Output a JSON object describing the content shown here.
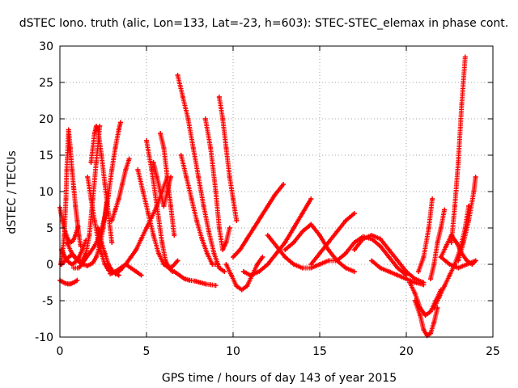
{
  "chart_data": {
    "type": "scatter",
    "title": "dSTEC Iono. truth (alic, Lon=133, Lat=-23, h=603): STEC-STEC_elemax in phase cont.",
    "xlabel": "GPS time / hours of day 143 of year 2015",
    "ylabel": "dSTEC  / TECUs",
    "xlim": [
      0,
      25
    ],
    "ylim": [
      -10,
      30
    ],
    "xticks": [
      0,
      5,
      10,
      15,
      20,
      25
    ],
    "yticks": [
      -10,
      -5,
      0,
      5,
      10,
      15,
      20,
      25,
      30
    ],
    "grid": true,
    "legend": "none",
    "marker": "plus",
    "color": "#ff0000",
    "series": [
      {
        "x": [
          0.0,
          0.15,
          0.3,
          0.45,
          0.6,
          0.75,
          0.9,
          1.05
        ],
        "y": [
          7.8,
          6.0,
          4.5,
          3.5,
          3.0,
          3.2,
          4.0,
          5.2
        ]
      },
      {
        "x": [
          0.0,
          0.15,
          0.3,
          0.45,
          0.6,
          0.8,
          1.0
        ],
        "y": [
          -2.2,
          -2.4,
          -2.6,
          -2.7,
          -2.7,
          -2.5,
          -2.2
        ]
      },
      {
        "x": [
          0.05,
          0.15,
          0.25,
          0.35,
          0.4,
          0.5,
          0.6,
          0.7,
          0.8,
          0.9,
          1.0,
          1.1,
          1.2
        ],
        "y": [
          0.0,
          1.5,
          4.0,
          9.0,
          13.0,
          18.5,
          16.0,
          13.0,
          10.5,
          8.0,
          6.0,
          4.0,
          2.5
        ]
      },
      {
        "x": [
          0.1,
          0.3,
          0.5,
          0.7,
          0.9,
          1.1,
          1.3,
          1.5,
          1.7,
          1.9,
          2.1,
          2.3
        ],
        "y": [
          0.0,
          0.5,
          1.0,
          1.3,
          1.0,
          0.5,
          0.5,
          1.5,
          4.0,
          9.0,
          14.0,
          19.0
        ]
      },
      {
        "x": [
          0.1,
          0.3,
          0.5,
          0.7,
          0.9,
          1.1,
          1.3,
          1.5
        ],
        "y": [
          2.0,
          1.0,
          0.3,
          0.0,
          0.3,
          1.0,
          2.0,
          3.3
        ]
      },
      {
        "x": [
          0.4,
          0.7,
          1.0,
          1.3,
          1.6,
          1.9,
          2.1,
          2.3,
          2.5,
          2.7
        ],
        "y": [
          3.0,
          1.5,
          0.5,
          0.0,
          -0.2,
          0.2,
          1.0,
          2.5,
          5.0,
          8.5
        ]
      },
      {
        "x": [
          0.8,
          1.1,
          1.4,
          1.7,
          2.0,
          2.3,
          2.6,
          2.8,
          3.0,
          3.2,
          3.4,
          3.5
        ],
        "y": [
          -0.5,
          -0.5,
          0.5,
          1.5,
          2.5,
          4.0,
          6.5,
          9.5,
          13.0,
          16.0,
          18.5,
          19.5
        ]
      },
      {
        "x": [
          1.6,
          1.8,
          2.0,
          2.2,
          2.4,
          2.6,
          2.8,
          3.0,
          3.2
        ],
        "y": [
          12.0,
          9.0,
          6.0,
          3.5,
          1.5,
          0.0,
          -0.8,
          -1.2,
          -1.0
        ]
      },
      {
        "x": [
          1.8,
          2.0,
          2.1,
          2.2,
          2.4,
          2.6,
          2.8,
          3.0
        ],
        "y": [
          14.0,
          18.0,
          19.0,
          18.5,
          15.0,
          11.0,
          7.0,
          3.0
        ]
      },
      {
        "x": [
          2.2,
          2.4,
          2.6,
          2.8,
          3.0,
          3.2,
          3.4
        ],
        "y": [
          5.0,
          3.0,
          1.5,
          0.0,
          -0.8,
          -1.2,
          -1.5
        ]
      },
      {
        "x": [
          3.0,
          3.2,
          3.4,
          3.6,
          3.8,
          4.0
        ],
        "y": [
          6.0,
          7.5,
          9.0,
          11.0,
          13.0,
          14.5
        ]
      },
      {
        "x": [
          2.9,
          3.2,
          3.5,
          3.8,
          4.1,
          4.4,
          4.7
        ],
        "y": [
          -1.3,
          -1.0,
          -0.5,
          0.0,
          -0.5,
          -1.0,
          -1.5
        ]
      },
      {
        "x": [
          3.2,
          3.5,
          3.8,
          4.1,
          4.4,
          4.7,
          5.0,
          5.3,
          5.6,
          5.9,
          6.2
        ],
        "y": [
          -1.3,
          -0.8,
          0.0,
          1.0,
          2.0,
          3.5,
          5.0,
          6.5,
          8.0,
          10.0,
          12.0
        ]
      },
      {
        "x": [
          4.5,
          4.8,
          5.1,
          5.4,
          5.7,
          6.0,
          6.3,
          6.5,
          6.8
        ],
        "y": [
          13.0,
          10.0,
          7.0,
          4.0,
          1.5,
          0.0,
          -0.5,
          -0.3,
          0.5
        ]
      },
      {
        "x": [
          5.0,
          5.3,
          5.6,
          5.9,
          6.1,
          6.3,
          6.5
        ],
        "y": [
          17.0,
          13.0,
          8.0,
          3.0,
          0.5,
          -0.5,
          -1.0
        ]
      },
      {
        "x": [
          5.4,
          5.6,
          5.8,
          6.0,
          6.2,
          6.4
        ],
        "y": [
          14.0,
          12.0,
          10.0,
          8.0,
          10.0,
          12.0
        ]
      },
      {
        "x": [
          5.8,
          6.0,
          6.2,
          6.4,
          6.6
        ],
        "y": [
          18.0,
          16.0,
          12.0,
          8.0,
          4.0
        ]
      },
      {
        "x": [
          6.8,
          7.1,
          7.4,
          7.7,
          8.0,
          8.3,
          8.6,
          8.9,
          9.2,
          9.5
        ],
        "y": [
          26.0,
          23.0,
          20.0,
          16.0,
          12.0,
          8.0,
          4.5,
          1.5,
          -0.5,
          -1.0
        ]
      },
      {
        "x": [
          6.6,
          6.9,
          7.2,
          7.5,
          7.8,
          8.1,
          8.4,
          8.7,
          9.0
        ],
        "y": [
          -1.0,
          -1.5,
          -2.0,
          -2.2,
          -2.3,
          -2.5,
          -2.7,
          -2.8,
          -2.9
        ]
      },
      {
        "x": [
          7.0,
          7.3,
          7.6,
          7.9,
          8.2,
          8.5,
          8.8,
          9.1
        ],
        "y": [
          15.0,
          12.0,
          9.0,
          6.0,
          3.5,
          1.5,
          0.0,
          0.0
        ]
      },
      {
        "x": [
          8.4,
          8.7,
          9.0,
          9.2,
          9.4,
          9.6,
          9.8
        ],
        "y": [
          20.0,
          16.0,
          10.0,
          5.0,
          2.0,
          3.0,
          5.0
        ]
      },
      {
        "x": [
          9.2,
          9.4,
          9.6,
          9.8,
          10.0,
          10.2
        ],
        "y": [
          23.0,
          20.0,
          16.0,
          12.0,
          9.0,
          6.0
        ]
      },
      {
        "x": [
          9.6,
          9.9,
          10.2,
          10.5,
          10.8,
          11.1,
          11.4,
          11.7
        ],
        "y": [
          0.0,
          -1.5,
          -3.0,
          -3.5,
          -3.0,
          -1.5,
          0.0,
          1.0
        ]
      },
      {
        "x": [
          10.0,
          10.4,
          10.8,
          11.2,
          11.6,
          12.0,
          12.4,
          12.9
        ],
        "y": [
          1.0,
          2.0,
          3.5,
          5.0,
          6.5,
          8.0,
          9.5,
          11.0
        ]
      },
      {
        "x": [
          10.6,
          11.0,
          11.5,
          12.0,
          12.5,
          13.0,
          13.5,
          14.0,
          14.5
        ],
        "y": [
          -1.0,
          -1.5,
          -1.0,
          0.0,
          1.5,
          3.0,
          5.0,
          7.0,
          9.0
        ]
      },
      {
        "x": [
          12.0,
          12.5,
          13.0,
          13.5,
          14.0,
          14.5,
          15.0,
          15.5,
          16.0
        ],
        "y": [
          4.0,
          2.5,
          1.0,
          0.0,
          -0.5,
          -0.5,
          0.0,
          0.5,
          0.5
        ]
      },
      {
        "x": [
          13.0,
          13.5,
          14.0,
          14.5,
          15.0,
          15.5,
          16.0,
          16.5,
          17.0
        ],
        "y": [
          2.0,
          3.0,
          4.5,
          5.5,
          4.0,
          2.0,
          0.5,
          -0.5,
          -1.0
        ]
      },
      {
        "x": [
          14.5,
          15.0,
          15.5,
          16.0,
          16.5,
          17.0
        ],
        "y": [
          0.0,
          1.5,
          3.0,
          4.5,
          6.0,
          7.0
        ]
      },
      {
        "x": [
          16.0,
          16.5,
          17.0,
          17.5,
          18.0,
          18.5,
          19.0,
          19.5,
          20.0
        ],
        "y": [
          0.5,
          1.5,
          3.0,
          3.8,
          3.5,
          2.5,
          1.0,
          -0.5,
          -1.5
        ]
      },
      {
        "x": [
          17.0,
          17.5,
          18.0,
          18.5,
          19.0,
          19.5,
          20.0,
          20.5,
          21.0
        ],
        "y": [
          2.0,
          3.5,
          4.0,
          3.5,
          2.0,
          0.5,
          -1.0,
          -2.0,
          -2.5
        ]
      },
      {
        "x": [
          18.0,
          18.5,
          19.0,
          19.5,
          20.0,
          20.5,
          21.0
        ],
        "y": [
          0.5,
          -0.5,
          -1.0,
          -1.5,
          -2.0,
          -2.5,
          -2.8
        ]
      },
      {
        "x": [
          20.2,
          20.5,
          20.8,
          21.1,
          21.4,
          21.7,
          22.0
        ],
        "y": [
          -2.5,
          -4.0,
          -6.0,
          -7.0,
          -6.5,
          -5.0,
          -3.5
        ]
      },
      {
        "x": [
          20.5,
          20.8,
          21.0,
          21.2,
          21.4,
          21.6,
          21.8
        ],
        "y": [
          -5.0,
          -7.0,
          -9.0,
          -9.8,
          -9.5,
          -8.0,
          -6.0
        ]
      },
      {
        "x": [
          20.7,
          21.0,
          21.3,
          21.5
        ],
        "y": [
          -1.0,
          1.0,
          5.0,
          9.0
        ]
      },
      {
        "x": [
          21.4,
          21.6,
          21.8,
          22.0,
          22.2
        ],
        "y": [
          -2.0,
          0.0,
          3.0,
          5.0,
          7.5
        ]
      },
      {
        "x": [
          21.6,
          21.9,
          22.2,
          22.5,
          22.8,
          23.1,
          23.4,
          23.6
        ],
        "y": [
          -6.0,
          -4.5,
          -3.0,
          -1.5,
          0.0,
          2.0,
          5.0,
          8.0
        ]
      },
      {
        "x": [
          22.0,
          22.3,
          22.6,
          22.9,
          23.2,
          23.5,
          23.8,
          24.0
        ],
        "y": [
          1.0,
          2.5,
          4.0,
          3.0,
          1.5,
          0.5,
          0.0,
          0.5
        ]
      },
      {
        "x": [
          22.6,
          22.8,
          23.0,
          23.2,
          23.4
        ],
        "y": [
          3.0,
          8.0,
          14.0,
          22.0,
          28.5
        ]
      },
      {
        "x": [
          23.0,
          23.3,
          23.6,
          23.9,
          24.0
        ],
        "y": [
          0.5,
          3.0,
          6.0,
          10.0,
          12.0
        ]
      },
      {
        "x": [
          22.0,
          22.5,
          23.0,
          23.5,
          24.0
        ],
        "y": [
          1.0,
          0.0,
          -0.5,
          0.0,
          0.5
        ]
      }
    ]
  }
}
